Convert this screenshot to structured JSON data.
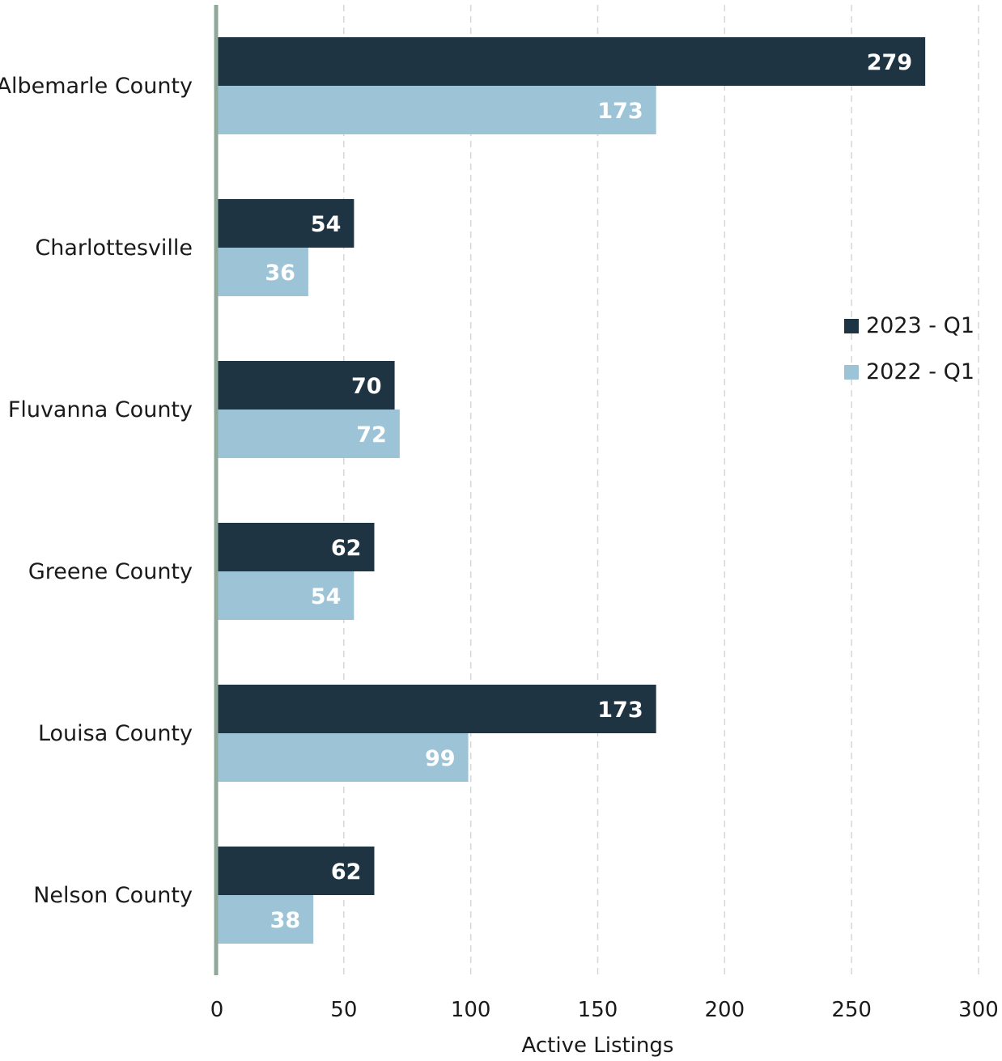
{
  "chart_data": {
    "type": "bar",
    "orientation": "horizontal",
    "categories": [
      "Albemarle County",
      "Charlottesville",
      "Fluvanna County",
      "Greene County",
      "Louisa County",
      "Nelson County"
    ],
    "series": [
      {
        "name": "2023 - Q1",
        "color": "#1e3442",
        "values": [
          279,
          54,
          70,
          62,
          173,
          62
        ]
      },
      {
        "name": "2022 - Q1",
        "color": "#9dc4d6",
        "values": [
          173,
          36,
          72,
          54,
          99,
          38
        ]
      }
    ],
    "xlabel": "Active Listings",
    "ylabel": "",
    "xlim": [
      0,
      300
    ],
    "xticks": [
      0,
      50,
      100,
      150,
      200,
      250,
      300
    ],
    "grid": "vertical-dashed",
    "legend": "right",
    "data_labels": true
  }
}
